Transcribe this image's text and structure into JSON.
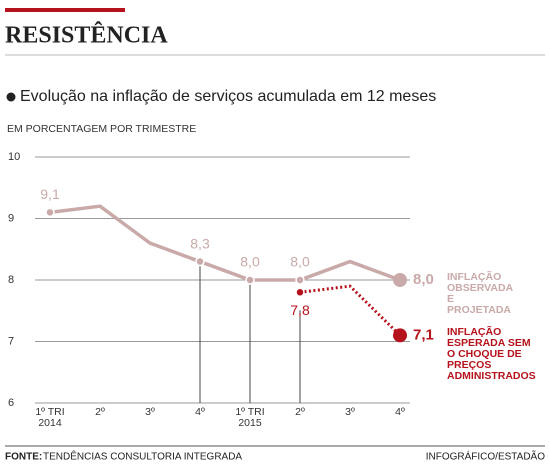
{
  "chart_data": {
    "type": "line",
    "title": "RESISTÊNCIA",
    "subtitle": "Evolução na inflação de serviços acumulada em 12 meses",
    "y_axis_label": "EM PORCENTAGEM POR TRIMESTRE",
    "categories": [
      "1º TRI 2014",
      "2º",
      "3º",
      "4º",
      "1º TRI 2015",
      "2º",
      "3º",
      "4º"
    ],
    "series": [
      {
        "name": "INFLAÇÃO OBSERVADA E PROJETADA",
        "color": "#c9aaa9",
        "values": [
          9.1,
          9.2,
          8.6,
          8.3,
          8.0,
          8.0,
          8.3,
          8.0
        ],
        "value_labels": [
          "9,1",
          null,
          null,
          "8,3",
          "8,0",
          "8,0",
          null,
          "8,0"
        ]
      },
      {
        "name": "INFLAÇÃO ESPERADA SEM O CHOQUE DE PREÇOS ADMINISTRADOS",
        "color": "#b5121b",
        "values": [
          null,
          null,
          null,
          null,
          null,
          7.8,
          7.9,
          7.1
        ],
        "value_labels": [
          null,
          null,
          null,
          null,
          null,
          "7,8",
          null,
          "7,1"
        ]
      }
    ],
    "ylim": [
      6,
      10
    ],
    "yticks": [
      6,
      7,
      8,
      9,
      10
    ],
    "grid": true,
    "source_label": "FONTE:",
    "source": "TENDÊNCIAS CONSULTORIA INTEGRADA",
    "credit": "INFOGRÁFICO/ESTADÃO"
  }
}
